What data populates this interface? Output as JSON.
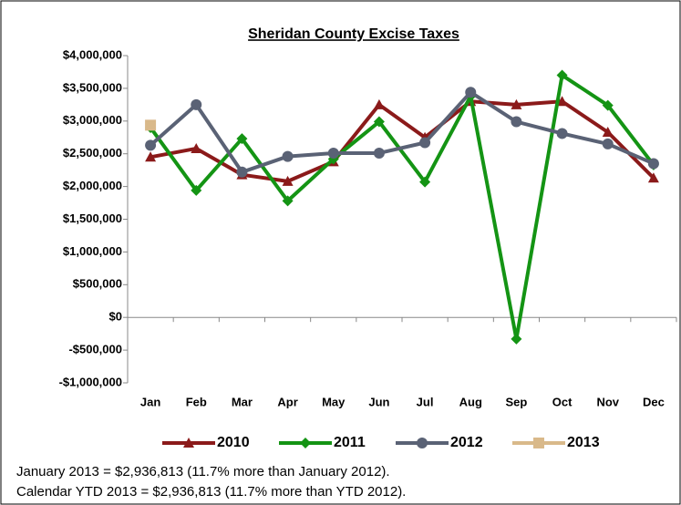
{
  "chart_data": {
    "type": "line",
    "title": "Sheridan County Excise Taxes",
    "categories": [
      "Jan",
      "Feb",
      "Mar",
      "Apr",
      "May",
      "Jun",
      "Jul",
      "Aug",
      "Sep",
      "Oct",
      "Nov",
      "Dec"
    ],
    "series": [
      {
        "name": "2010",
        "color": "#8b1a1a",
        "marker": "triangle",
        "values": [
          2450000,
          2580000,
          2180000,
          2080000,
          2380000,
          3250000,
          2750000,
          3300000,
          3250000,
          3300000,
          2830000,
          2130000
        ]
      },
      {
        "name": "2011",
        "color": "#149414",
        "marker": "diamond",
        "values": [
          2900000,
          1940000,
          2730000,
          1780000,
          2420000,
          2990000,
          2070000,
          3380000,
          -330000,
          3700000,
          3240000,
          2330000
        ]
      },
      {
        "name": "2012",
        "color": "#5a6275",
        "marker": "circle",
        "values": [
          2630000,
          3250000,
          2220000,
          2460000,
          2510000,
          2510000,
          2670000,
          3440000,
          2990000,
          2810000,
          2650000,
          2350000
        ]
      },
      {
        "name": "2013",
        "color": "#d9b98a",
        "marker": "square",
        "values": [
          2936813,
          null,
          null,
          null,
          null,
          null,
          null,
          null,
          null,
          null,
          null,
          null
        ]
      }
    ],
    "ylim": [
      -1000000,
      4000000
    ],
    "yticks": [
      {
        "value": -1000000,
        "label": "-$1,000,000"
      },
      {
        "value": -500000,
        "label": "-$500,000"
      },
      {
        "value": 0,
        "label": "$0"
      },
      {
        "value": 500000,
        "label": "$500,000"
      },
      {
        "value": 1000000,
        "label": "$1,000,000"
      },
      {
        "value": 1500000,
        "label": "$1,500,000"
      },
      {
        "value": 2000000,
        "label": "$2,000,000"
      },
      {
        "value": 2500000,
        "label": "$2,500,000"
      },
      {
        "value": 3000000,
        "label": "$3,000,000"
      },
      {
        "value": 3500000,
        "label": "$3,500,000"
      },
      {
        "value": 4000000,
        "label": "$4,000,000"
      }
    ],
    "notes": [
      "January 2013 = $2,936,813 (11.7% more than January 2012).",
      "Calendar YTD 2013 = $2,936,813 (11.7% more than YTD 2012)."
    ]
  }
}
